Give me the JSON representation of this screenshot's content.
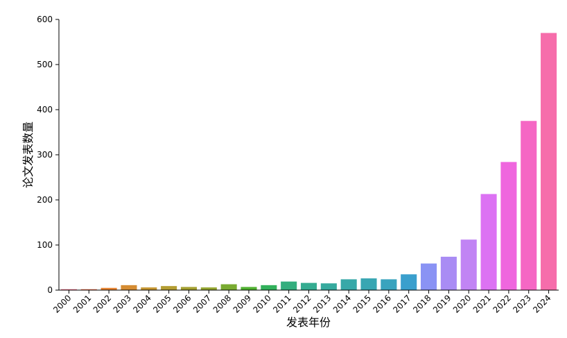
{
  "chart_data": {
    "type": "bar",
    "xlabel": "发表年份",
    "ylabel": "论文发表数量",
    "categories": [
      "2000",
      "2001",
      "2002",
      "2003",
      "2004",
      "2005",
      "2006",
      "2007",
      "2008",
      "2009",
      "2010",
      "2011",
      "2012",
      "2013",
      "2014",
      "2015",
      "2016",
      "2017",
      "2018",
      "2019",
      "2020",
      "2021",
      "2022",
      "2023",
      "2024"
    ],
    "values": [
      2,
      2,
      5,
      11,
      6,
      9,
      7,
      6,
      13,
      7,
      11,
      19,
      16,
      15,
      24,
      26,
      24,
      35,
      59,
      74,
      112,
      213,
      284,
      375,
      570
    ],
    "colors": [
      "#f77189",
      "#f7754f",
      "#e68332",
      "#d58c32",
      "#c59632",
      "#b49d32",
      "#a4a031",
      "#94a531",
      "#79ab31",
      "#50b131",
      "#32b15c",
      "#34ae7e",
      "#35ac91",
      "#36aa9e",
      "#37a8a8",
      "#38a6b2",
      "#39a3be",
      "#3a9fcd",
      "#8a93f4",
      "#a98cf4",
      "#c184f4",
      "#dc72f3",
      "#ef66de",
      "#f567c4",
      "#f66dab"
    ],
    "ylim": [
      0,
      600
    ],
    "yticks": [
      0,
      100,
      200,
      300,
      400,
      500,
      600
    ],
    "grid": false
  }
}
